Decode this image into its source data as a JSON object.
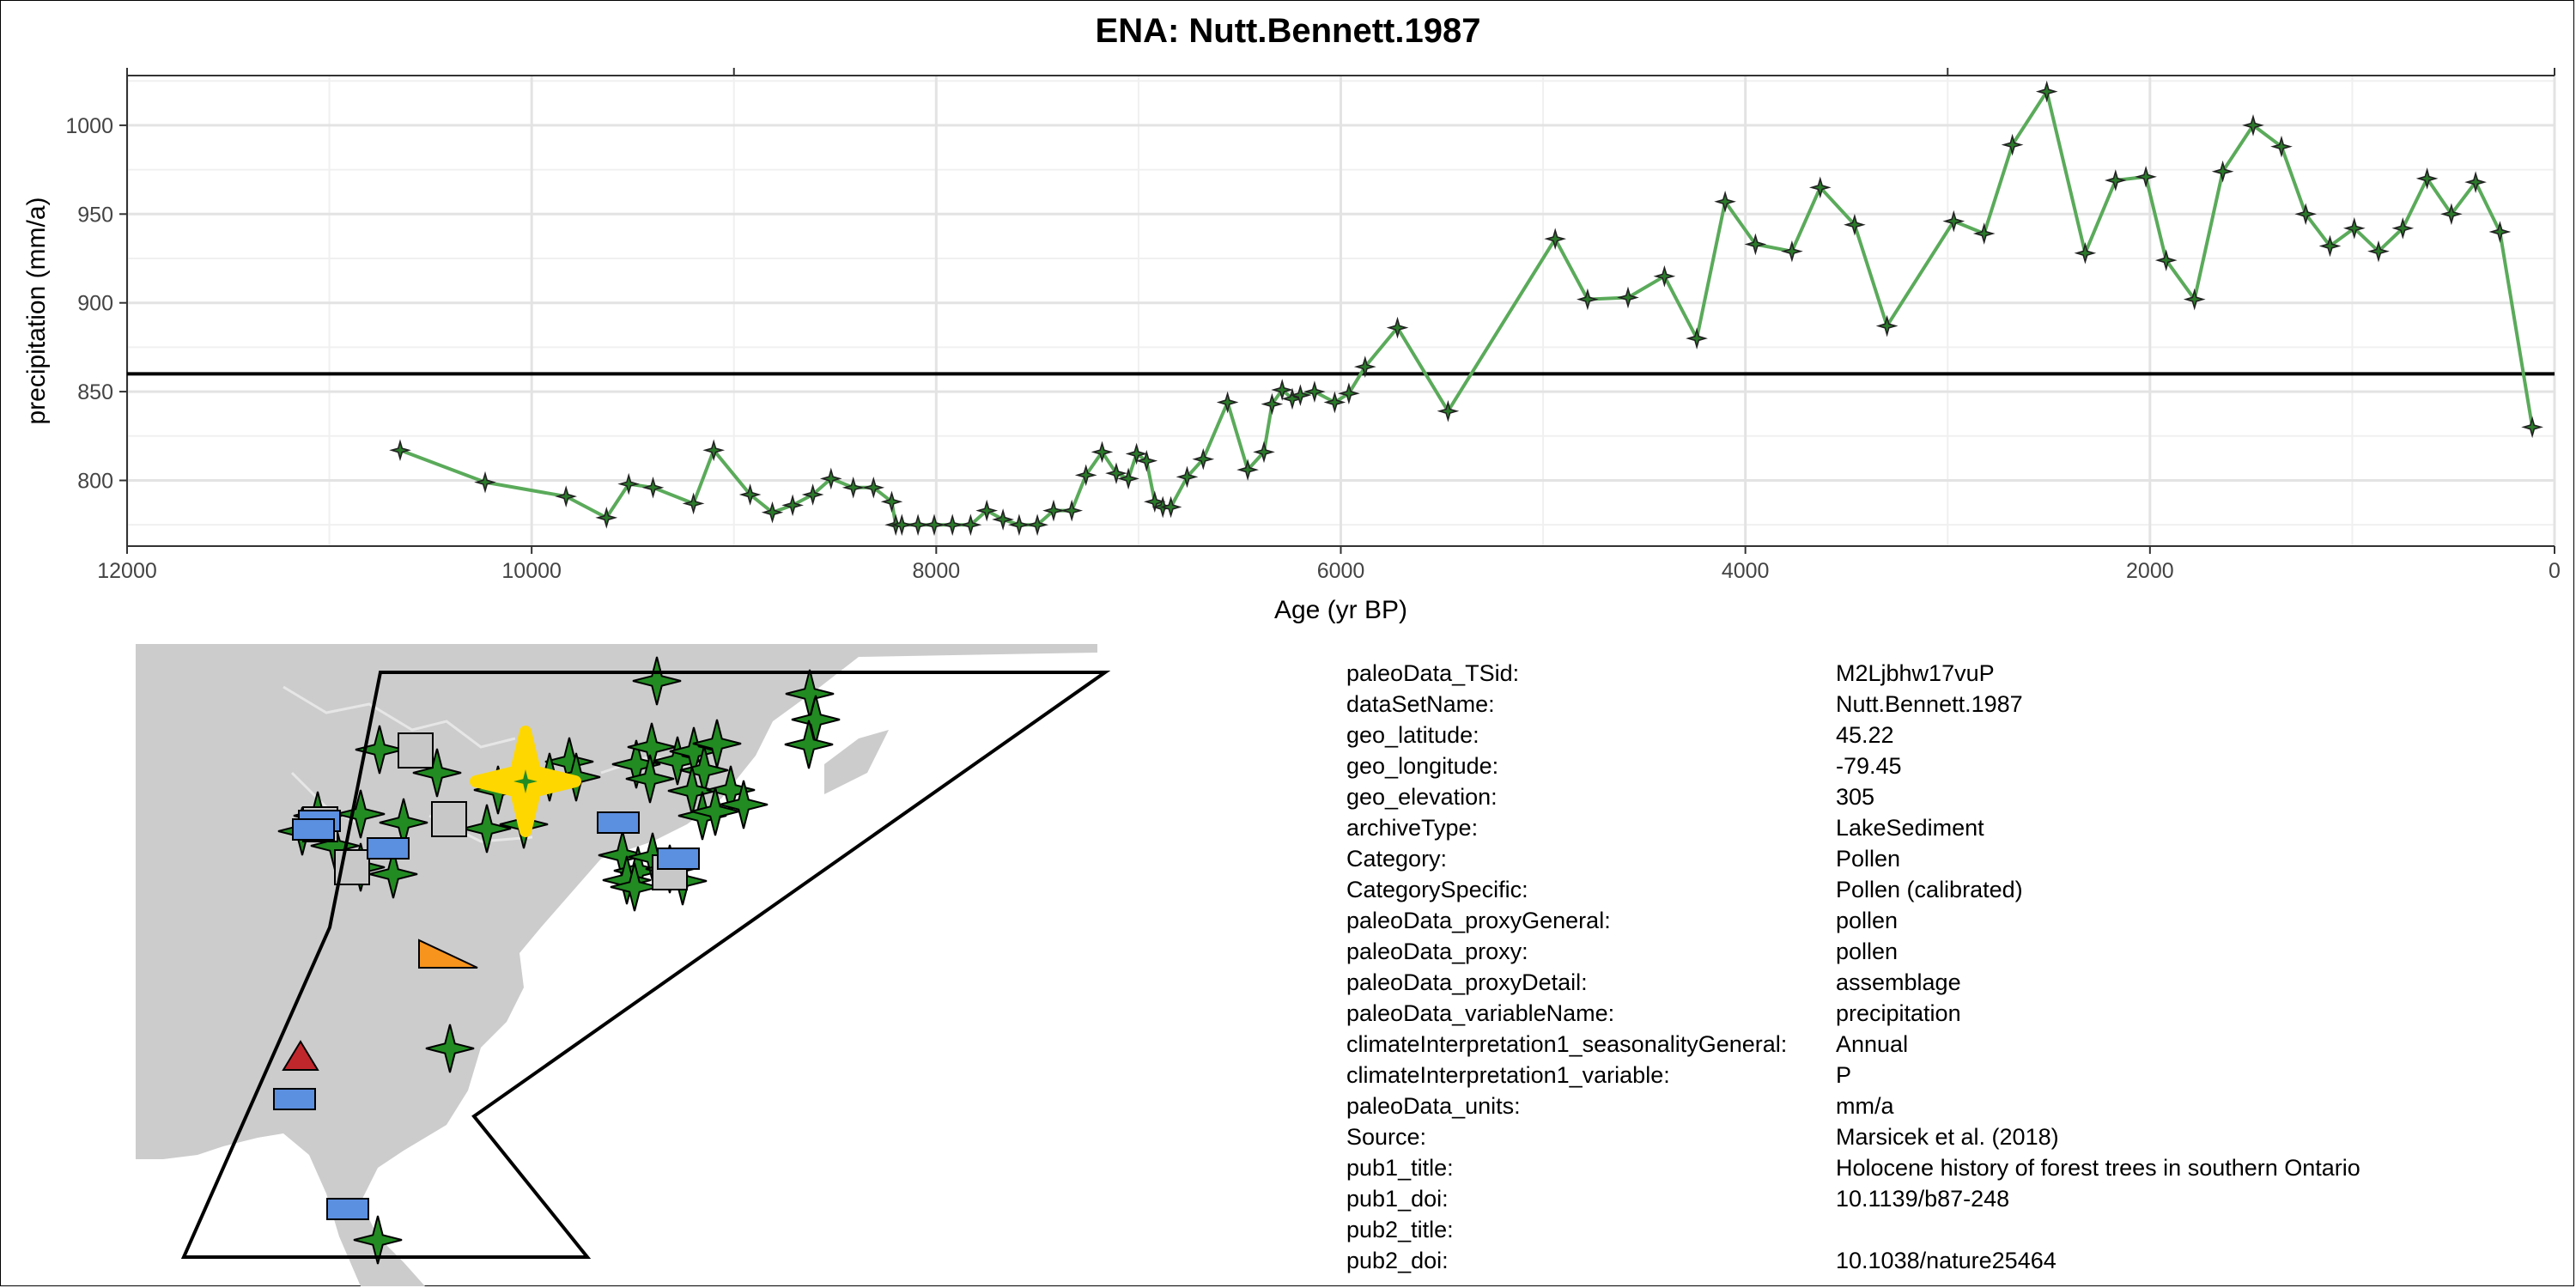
{
  "chart_data": {
    "type": "line",
    "title": "ENA: Nutt.Bennett.1987",
    "xlabel": "Age (yr BP)",
    "ylabel": "precipitation (mm/a)",
    "xlim": [
      12000,
      0
    ],
    "ylim": [
      763,
      1028
    ],
    "x_ticks": [
      12000,
      10000,
      8000,
      6000,
      4000,
      2000,
      0
    ],
    "y_ticks": [
      800,
      850,
      900,
      950,
      1000
    ],
    "top_axis_ticks": [
      9000,
      3000
    ],
    "reference_line_y": 860,
    "grid": true,
    "line_color": "#5aaa5a",
    "series": [
      {
        "x": [
          10650,
          10230,
          9830,
          9630,
          9520,
          9400,
          9200,
          9100,
          8920,
          8810,
          8710,
          8610,
          8520,
          8410,
          8310,
          8220,
          8200,
          8170,
          8090,
          8010,
          7920,
          7830,
          7750,
          7670,
          7590,
          7500,
          7420,
          7330,
          7260,
          7180,
          7110,
          7050,
          7010,
          6960,
          6920,
          6880,
          6840,
          6760,
          6680,
          6560,
          6460,
          6380,
          6340,
          6290,
          6240,
          6200,
          6130,
          6030,
          5960,
          5880,
          5720,
          5470,
          4940,
          4780,
          4580,
          4400,
          4240,
          4100,
          3950,
          3770,
          3630,
          3460,
          3300,
          2970,
          2820,
          2680,
          2510,
          2320,
          2170,
          2020,
          1920,
          1780,
          1640,
          1490,
          1350,
          1230,
          1110,
          990,
          870,
          750,
          630,
          510,
          390,
          270,
          110
        ],
        "y": [
          817,
          799,
          791,
          779,
          798,
          796,
          787,
          817,
          792,
          782,
          786,
          792,
          801,
          796,
          796,
          788,
          775,
          775,
          775,
          775,
          775,
          775,
          783,
          778,
          775,
          775,
          783,
          783,
          803,
          816,
          804,
          801,
          815,
          811,
          788,
          785,
          785,
          802,
          812,
          844,
          806,
          816,
          843,
          851,
          846,
          848,
          850,
          844,
          849,
          864,
          886,
          839,
          936,
          902,
          903,
          915,
          880,
          957,
          933,
          929,
          965,
          944,
          887,
          946,
          939,
          989,
          1019,
          928,
          969,
          971,
          924,
          902,
          974,
          1000,
          988,
          950,
          932,
          942,
          929,
          942,
          970,
          950,
          968,
          940,
          830
        ]
      }
    ]
  },
  "map": {
    "land_color": "#cccccc",
    "site_color": "#ffd700",
    "symbols": [
      {
        "shape": "star",
        "color": "#228b22",
        "count": 40
      },
      {
        "shape": "square",
        "color": "#c8c8c8",
        "count": 5
      },
      {
        "shape": "rectangle",
        "color": "#5b8fe0",
        "count": 7
      },
      {
        "shape": "triangle-right",
        "color": "#f7941d",
        "count": 1
      },
      {
        "shape": "triangle-up",
        "color": "#c0272d",
        "count": 1
      }
    ]
  },
  "metadata": [
    {
      "key": "paleoData_TSid:",
      "value": "M2Ljbhw17vuP"
    },
    {
      "key": "dataSetName:",
      "value": "Nutt.Bennett.1987"
    },
    {
      "key": "geo_latitude:",
      "value": "45.22"
    },
    {
      "key": "geo_longitude:",
      "value": "-79.45"
    },
    {
      "key": "geo_elevation:",
      "value": "305"
    },
    {
      "key": "archiveType:",
      "value": "LakeSediment"
    },
    {
      "key": "Category:",
      "value": "Pollen"
    },
    {
      "key": "CategorySpecific:",
      "value": "Pollen (calibrated)"
    },
    {
      "key": "paleoData_proxyGeneral:",
      "value": "pollen"
    },
    {
      "key": "paleoData_proxy:",
      "value": "pollen"
    },
    {
      "key": "paleoData_proxyDetail:",
      "value": "assemblage"
    },
    {
      "key": "paleoData_variableName:",
      "value": "precipitation"
    },
    {
      "key": "climateInterpretation1_seasonalityGeneral:",
      "value": "Annual"
    },
    {
      "key": "climateInterpretation1_variable:",
      "value": "P"
    },
    {
      "key": "paleoData_units:",
      "value": "mm/a"
    },
    {
      "key": "Source:",
      "value": "Marsicek et al. (2018)"
    },
    {
      "key": "pub1_title:",
      "value": "Holocene history of forest trees in southern Ontario"
    },
    {
      "key": "pub1_doi:",
      "value": "10.1139/b87-248"
    },
    {
      "key": "pub2_title:",
      "value": ""
    },
    {
      "key": "pub2_doi:",
      "value": "10.1038/nature25464"
    }
  ]
}
